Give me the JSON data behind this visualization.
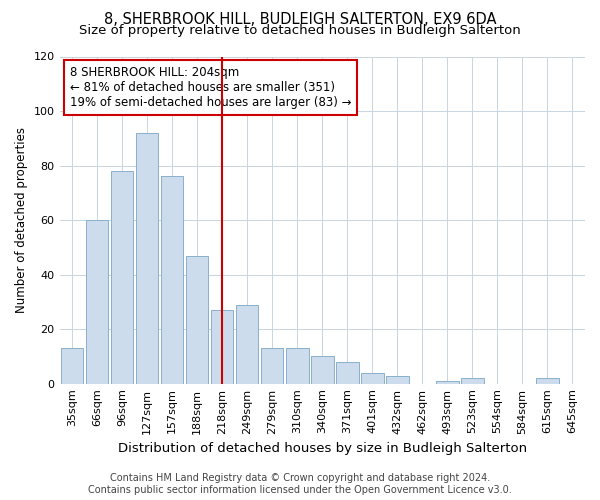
{
  "title": "8, SHERBROOK HILL, BUDLEIGH SALTERTON, EX9 6DA",
  "subtitle": "Size of property relative to detached houses in Budleigh Salterton",
  "xlabel": "Distribution of detached houses by size in Budleigh Salterton",
  "ylabel": "Number of detached properties",
  "bar_labels": [
    "35sqm",
    "66sqm",
    "96sqm",
    "127sqm",
    "157sqm",
    "188sqm",
    "218sqm",
    "249sqm",
    "279sqm",
    "310sqm",
    "340sqm",
    "371sqm",
    "401sqm",
    "432sqm",
    "462sqm",
    "493sqm",
    "523sqm",
    "554sqm",
    "584sqm",
    "615sqm",
    "645sqm"
  ],
  "bar_values": [
    13,
    60,
    78,
    92,
    76,
    47,
    27,
    29,
    13,
    13,
    10,
    8,
    4,
    3,
    0,
    1,
    2,
    0,
    0,
    2,
    0
  ],
  "bar_color": "#ccdcec",
  "bar_edge_color": "#8ab0cc",
  "vline_x": 6.0,
  "vline_color": "#cc0000",
  "annotation_lines": [
    "8 SHERBROOK HILL: 204sqm",
    "← 81% of detached houses are smaller (351)",
    "19% of semi-detached houses are larger (83) →"
  ],
  "annotation_box_color": "#cc0000",
  "ylim": [
    0,
    120
  ],
  "yticks": [
    0,
    20,
    40,
    60,
    80,
    100,
    120
  ],
  "footer_line1": "Contains HM Land Registry data © Crown copyright and database right 2024.",
  "footer_line2": "Contains public sector information licensed under the Open Government Licence v3.0.",
  "bg_color": "#ffffff",
  "plot_bg_color": "#ffffff",
  "grid_color": "#c8d4e0",
  "title_fontsize": 10.5,
  "subtitle_fontsize": 9.5,
  "xlabel_fontsize": 9.5,
  "ylabel_fontsize": 8.5,
  "tick_fontsize": 8,
  "footer_fontsize": 7,
  "ann_fontsize": 8.5
}
